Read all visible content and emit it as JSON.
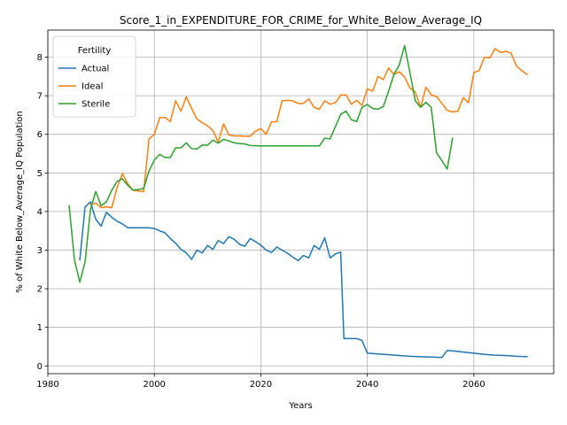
{
  "chart_data": {
    "type": "line",
    "title": "Score_1_in_EXPENDITURE_FOR_CRIME_for_White_Below_Average_IQ",
    "xlabel": "Years",
    "ylabel": "% of White Below_Average_IQ Population",
    "xlim": [
      1980,
      2075
    ],
    "ylim": [
      -0.2,
      8.7
    ],
    "xticks": [
      1980,
      2000,
      2020,
      2040,
      2060
    ],
    "yticks": [
      0,
      1,
      2,
      3,
      4,
      5,
      6,
      7,
      8
    ],
    "grid": true,
    "legend": {
      "title": "Fertility",
      "placement": "upper-left"
    },
    "series": [
      {
        "name": "Actual",
        "color": "#1f77b4",
        "points": [
          [
            1986,
            2.75
          ],
          [
            1987,
            4.12
          ],
          [
            1988,
            4.25
          ],
          [
            1989,
            3.8
          ],
          [
            1990,
            3.62
          ],
          [
            1991,
            3.98
          ],
          [
            1992,
            3.85
          ],
          [
            1993,
            3.75
          ],
          [
            1994,
            3.68
          ],
          [
            1995,
            3.58
          ],
          [
            1996,
            3.58
          ],
          [
            1997,
            3.58
          ],
          [
            1998,
            3.58
          ],
          [
            1999,
            3.58
          ],
          [
            2000,
            3.56
          ],
          [
            2001,
            3.5
          ],
          [
            2002,
            3.45
          ],
          [
            2003,
            3.3
          ],
          [
            2004,
            3.18
          ],
          [
            2005,
            3.02
          ],
          [
            2006,
            2.93
          ],
          [
            2007,
            2.76
          ],
          [
            2008,
            3.0
          ],
          [
            2009,
            2.93
          ],
          [
            2010,
            3.12
          ],
          [
            2011,
            3.02
          ],
          [
            2012,
            3.25
          ],
          [
            2013,
            3.17
          ],
          [
            2014,
            3.35
          ],
          [
            2015,
            3.28
          ],
          [
            2016,
            3.15
          ],
          [
            2017,
            3.1
          ],
          [
            2018,
            3.3
          ],
          [
            2019,
            3.22
          ],
          [
            2020,
            3.13
          ],
          [
            2021,
            3.0
          ],
          [
            2022,
            2.94
          ],
          [
            2023,
            3.08
          ],
          [
            2024,
            3.0
          ],
          [
            2025,
            2.92
          ],
          [
            2026,
            2.82
          ],
          [
            2027,
            2.73
          ],
          [
            2028,
            2.86
          ],
          [
            2029,
            2.8
          ],
          [
            2030,
            3.12
          ],
          [
            2031,
            3.02
          ],
          [
            2032,
            3.32
          ],
          [
            2033,
            2.8
          ],
          [
            2034,
            2.9
          ],
          [
            2035,
            2.95
          ],
          [
            2035.6,
            0.71
          ],
          [
            2036,
            0.71
          ],
          [
            2038,
            0.71
          ],
          [
            2039,
            0.66
          ],
          [
            2040,
            0.33
          ],
          [
            2042,
            0.31
          ],
          [
            2044,
            0.29
          ],
          [
            2046,
            0.27
          ],
          [
            2048,
            0.25
          ],
          [
            2050,
            0.24
          ],
          [
            2052,
            0.23
          ],
          [
            2054,
            0.22
          ],
          [
            2055,
            0.4
          ],
          [
            2056,
            0.39
          ],
          [
            2058,
            0.36
          ],
          [
            2060,
            0.33
          ],
          [
            2062,
            0.3
          ],
          [
            2064,
            0.28
          ],
          [
            2066,
            0.27
          ],
          [
            2068,
            0.25
          ],
          [
            2070,
            0.24
          ]
        ]
      },
      {
        "name": "Ideal",
        "color": "#ff7f0e",
        "points": [
          [
            1988,
            4.18
          ],
          [
            1989,
            4.22
          ],
          [
            1990,
            4.1
          ],
          [
            1991,
            4.12
          ],
          [
            1992,
            4.1
          ],
          [
            1993,
            4.62
          ],
          [
            1994,
            4.98
          ],
          [
            1995,
            4.72
          ],
          [
            1996,
            4.55
          ],
          [
            1997,
            4.53
          ],
          [
            1998,
            4.52
          ],
          [
            1999,
            5.88
          ],
          [
            2000,
            6.0
          ],
          [
            2001,
            6.43
          ],
          [
            2002,
            6.44
          ],
          [
            2003,
            6.33
          ],
          [
            2004,
            6.87
          ],
          [
            2005,
            6.6
          ],
          [
            2006,
            6.97
          ],
          [
            2007,
            6.67
          ],
          [
            2008,
            6.4
          ],
          [
            2009,
            6.3
          ],
          [
            2010,
            6.22
          ],
          [
            2011,
            6.1
          ],
          [
            2012,
            5.8
          ],
          [
            2013,
            6.27
          ],
          [
            2014,
            5.98
          ],
          [
            2015,
            5.96
          ],
          [
            2016,
            5.96
          ],
          [
            2017,
            5.95
          ],
          [
            2018,
            5.95
          ],
          [
            2019,
            6.08
          ],
          [
            2020,
            6.15
          ],
          [
            2021,
            6.0
          ],
          [
            2022,
            6.32
          ],
          [
            2023,
            6.33
          ],
          [
            2024,
            6.87
          ],
          [
            2025,
            6.88
          ],
          [
            2026,
            6.87
          ],
          [
            2027,
            6.8
          ],
          [
            2028,
            6.8
          ],
          [
            2029,
            6.92
          ],
          [
            2030,
            6.7
          ],
          [
            2031,
            6.65
          ],
          [
            2032,
            6.87
          ],
          [
            2033,
            6.78
          ],
          [
            2034,
            6.82
          ],
          [
            2035,
            7.02
          ],
          [
            2036,
            7.02
          ],
          [
            2037,
            6.78
          ],
          [
            2038,
            6.88
          ],
          [
            2039,
            6.75
          ],
          [
            2040,
            7.18
          ],
          [
            2041,
            7.12
          ],
          [
            2042,
            7.5
          ],
          [
            2043,
            7.42
          ],
          [
            2044,
            7.72
          ],
          [
            2045,
            7.55
          ],
          [
            2046,
            7.62
          ],
          [
            2047,
            7.48
          ],
          [
            2048,
            7.2
          ],
          [
            2049,
            7.1
          ],
          [
            2050,
            6.7
          ],
          [
            2051,
            7.22
          ],
          [
            2052,
            7.02
          ],
          [
            2053,
            6.98
          ],
          [
            2054,
            6.8
          ],
          [
            2055,
            6.62
          ],
          [
            2056,
            6.58
          ],
          [
            2057,
            6.6
          ],
          [
            2058,
            6.95
          ],
          [
            2059,
            6.82
          ],
          [
            2060,
            7.6
          ],
          [
            2061,
            7.65
          ],
          [
            2062,
            8.0
          ],
          [
            2063,
            7.98
          ],
          [
            2064,
            8.22
          ],
          [
            2065,
            8.12
          ],
          [
            2066,
            8.15
          ],
          [
            2067,
            8.1
          ],
          [
            2068,
            7.77
          ],
          [
            2069,
            7.65
          ],
          [
            2070,
            7.55
          ]
        ]
      },
      {
        "name": "Sterile",
        "color": "#2ca02c",
        "points": [
          [
            1984,
            4.15
          ],
          [
            1985,
            2.75
          ],
          [
            1986,
            2.17
          ],
          [
            1987,
            2.7
          ],
          [
            1988,
            4.05
          ],
          [
            1989,
            4.52
          ],
          [
            1990,
            4.15
          ],
          [
            1991,
            4.25
          ],
          [
            1992,
            4.55
          ],
          [
            1993,
            4.78
          ],
          [
            1994,
            4.85
          ],
          [
            1995,
            4.68
          ],
          [
            1996,
            4.55
          ],
          [
            1997,
            4.57
          ],
          [
            1998,
            4.6
          ],
          [
            1999,
            5.05
          ],
          [
            2000,
            5.33
          ],
          [
            2001,
            5.48
          ],
          [
            2002,
            5.4
          ],
          [
            2003,
            5.4
          ],
          [
            2004,
            5.65
          ],
          [
            2005,
            5.65
          ],
          [
            2006,
            5.78
          ],
          [
            2007,
            5.63
          ],
          [
            2008,
            5.62
          ],
          [
            2009,
            5.72
          ],
          [
            2010,
            5.72
          ],
          [
            2011,
            5.85
          ],
          [
            2012,
            5.77
          ],
          [
            2013,
            5.87
          ],
          [
            2014,
            5.83
          ],
          [
            2015,
            5.78
          ],
          [
            2016,
            5.76
          ],
          [
            2017,
            5.75
          ],
          [
            2018,
            5.71
          ],
          [
            2020,
            5.7
          ],
          [
            2025,
            5.7
          ],
          [
            2030,
            5.7
          ],
          [
            2031,
            5.7
          ],
          [
            2032,
            5.9
          ],
          [
            2033,
            5.88
          ],
          [
            2034,
            6.2
          ],
          [
            2035,
            6.52
          ],
          [
            2036,
            6.6
          ],
          [
            2037,
            6.38
          ],
          [
            2038,
            6.33
          ],
          [
            2039,
            6.7
          ],
          [
            2040,
            6.77
          ],
          [
            2041,
            6.67
          ],
          [
            2042,
            6.65
          ],
          [
            2043,
            6.72
          ],
          [
            2044,
            7.12
          ],
          [
            2045,
            7.55
          ],
          [
            2046,
            7.8
          ],
          [
            2047,
            8.3
          ],
          [
            2048,
            7.6
          ],
          [
            2049,
            6.87
          ],
          [
            2050,
            6.7
          ],
          [
            2051,
            6.83
          ],
          [
            2052,
            6.7
          ],
          [
            2053,
            5.52
          ],
          [
            2054,
            5.32
          ],
          [
            2055,
            5.1
          ],
          [
            2056,
            5.9
          ]
        ]
      }
    ]
  }
}
